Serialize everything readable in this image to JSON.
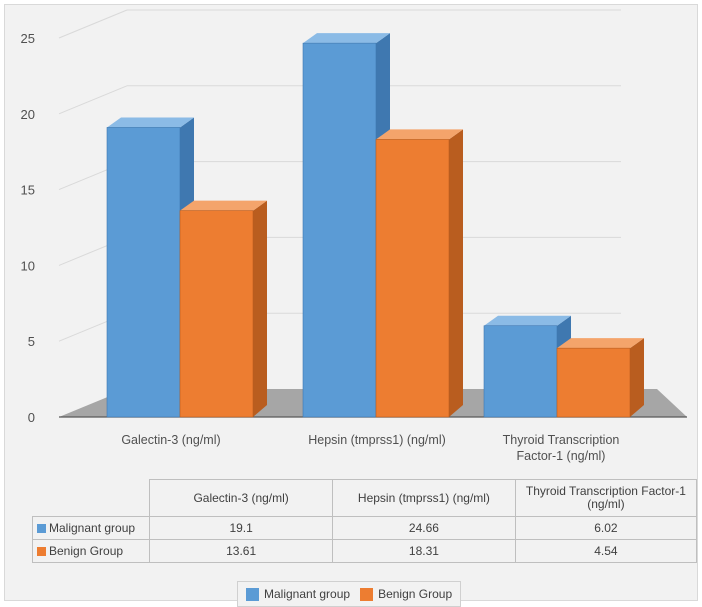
{
  "chart_data": {
    "type": "bar",
    "title": "",
    "xlabel": "",
    "ylabel": "",
    "ylim": [
      0,
      25
    ],
    "yticks": [
      0,
      5,
      10,
      15,
      20,
      25
    ],
    "grid": true,
    "legend_position": "bottom",
    "categories": [
      "Galectin-3 (ng/ml)",
      "Hepsin (tmprss1) (ng/ml)",
      "Thyroid Transcription Factor-1 (ng/ml)"
    ],
    "series": [
      {
        "name": "Malignant group",
        "values": [
          19.1,
          24.66,
          6.02
        ],
        "color": "#5b9bd5"
      },
      {
        "name": "Benign Group",
        "values": [
          13.61,
          18.31,
          4.54
        ],
        "color": "#ed7d31"
      }
    ]
  },
  "table": {
    "headers": [
      "Galectin-3 (ng/ml)",
      "Hepsin (tmprss1) (ng/ml)",
      "Thyroid Transcription Factor-1 (ng/ml)"
    ],
    "rows": [
      {
        "label": "Malignant group",
        "values": [
          "19.1",
          "24.66",
          "6.02"
        ]
      },
      {
        "label": "Benign Group",
        "values": [
          "13.61",
          "18.31",
          "4.54"
        ]
      }
    ]
  }
}
